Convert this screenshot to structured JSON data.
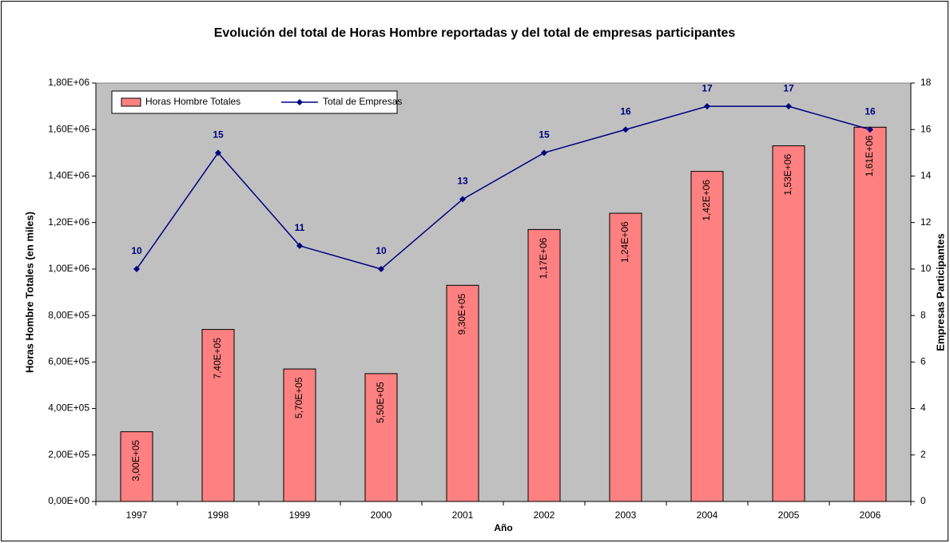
{
  "chart_data": {
    "type": "bar",
    "title": "Evolución del total de Horas Hombre reportadas y del total de empresas participantes",
    "x_label": "Año",
    "y_label": "Horas Hombre Totales (en miles)",
    "y2_label": "Empresas  Participantes",
    "categories": [
      "1997",
      "1998",
      "1999",
      "2000",
      "2001",
      "2002",
      "2003",
      "2004",
      "2005",
      "2006"
    ],
    "series": [
      {
        "name": "Horas Hombre Totales",
        "type": "bar",
        "color": "#ff8080",
        "values": [
          300000,
          740000,
          570000,
          550000,
          930000,
          1170000,
          1240000,
          1420000,
          1530000,
          1610000
        ],
        "value_labels": [
          "3,00E+05",
          "7,40E+05",
          "5,70E+05",
          "5,50E+05",
          "9,30E+05",
          "1,17E+06",
          "1,24E+06",
          "1,42E+06",
          "1,53E+06",
          "1,61E+06"
        ]
      },
      {
        "name": "Total de Empresas",
        "type": "line",
        "axis": "y2",
        "color": "#000080",
        "values": [
          10,
          15,
          11,
          10,
          13,
          15,
          16,
          17,
          17,
          16
        ]
      }
    ],
    "ylim": [
      0,
      1800000
    ],
    "yticks": [
      {
        "value": 0,
        "label": "0,00E+00"
      },
      {
        "value": 200000,
        "label": "2,00E+05"
      },
      {
        "value": 400000,
        "label": "4,00E+05"
      },
      {
        "value": 600000,
        "label": "6,00E+05"
      },
      {
        "value": 800000,
        "label": "8,00E+05"
      },
      {
        "value": 1000000,
        "label": "1,00E+06"
      },
      {
        "value": 1200000,
        "label": "1,20E+06"
      },
      {
        "value": 1400000,
        "label": "1,40E+06"
      },
      {
        "value": 1600000,
        "label": "1,60E+06"
      },
      {
        "value": 1800000,
        "label": "1,80E+06"
      }
    ],
    "y2lim": [
      0,
      18
    ],
    "y2ticks": [
      0,
      2,
      4,
      6,
      8,
      10,
      12,
      14,
      16,
      18
    ],
    "legend": "upper left",
    "plot_background": "#c0c0c0"
  }
}
